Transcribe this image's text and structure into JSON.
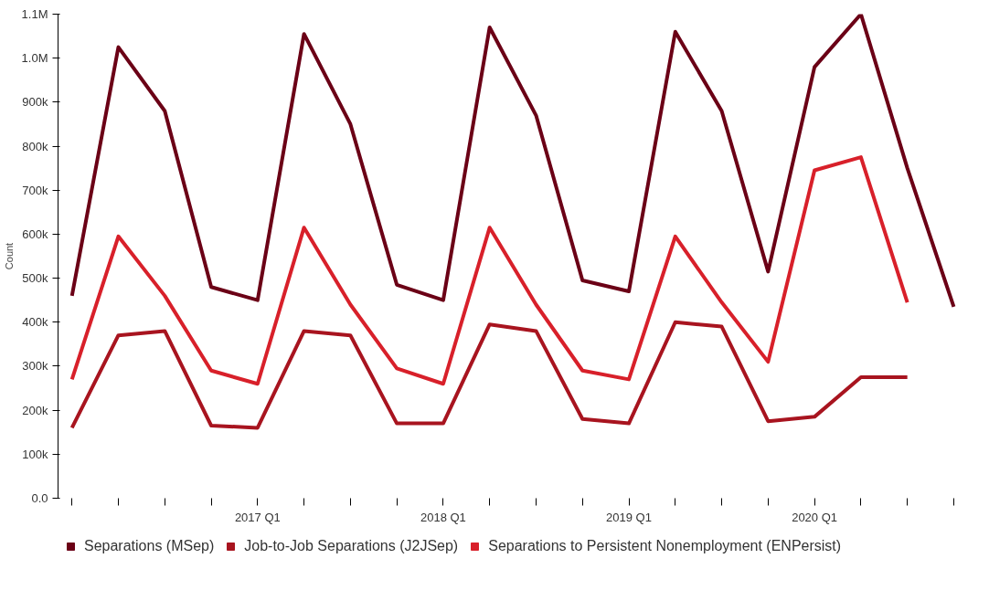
{
  "chart_data": {
    "type": "line",
    "ylabel": "Count",
    "categories": [
      null,
      null,
      null,
      null,
      "2017 Q1",
      null,
      null,
      null,
      "2018 Q1",
      null,
      null,
      null,
      "2019 Q1",
      null,
      null,
      null,
      "2020 Q1",
      null,
      null,
      null
    ],
    "series": [
      {
        "name": "Separations (MSep)",
        "color": "#6b0016",
        "values": [
          460000,
          1025000,
          880000,
          480000,
          450000,
          1055000,
          850000,
          485000,
          450000,
          1070000,
          870000,
          495000,
          470000,
          1060000,
          880000,
          515000,
          980000,
          1100000,
          750000,
          435000
        ]
      },
      {
        "name": "Job-to-Job Separations (J2JSep)",
        "color": "#a8141f",
        "values": [
          160000,
          370000,
          380000,
          165000,
          160000,
          380000,
          370000,
          170000,
          170000,
          395000,
          380000,
          180000,
          170000,
          400000,
          390000,
          175000,
          185000,
          275000,
          275000,
          null
        ]
      },
      {
        "name": "Separations to Persistent Nonemployment (ENPersist)",
        "color": "#d8202a",
        "values": [
          270000,
          595000,
          460000,
          290000,
          260000,
          615000,
          440000,
          295000,
          260000,
          615000,
          440000,
          290000,
          270000,
          595000,
          445000,
          310000,
          745000,
          775000,
          445000,
          null
        ]
      }
    ],
    "ylim": [
      0,
      1100000
    ],
    "yticks": [
      {
        "value": 0,
        "label": "0.0"
      },
      {
        "value": 100000,
        "label": "100k"
      },
      {
        "value": 200000,
        "label": "200k"
      },
      {
        "value": 300000,
        "label": "300k"
      },
      {
        "value": 400000,
        "label": "400k"
      },
      {
        "value": 500000,
        "label": "500k"
      },
      {
        "value": 600000,
        "label": "600k"
      },
      {
        "value": 700000,
        "label": "700k"
      },
      {
        "value": 800000,
        "label": "800k"
      },
      {
        "value": 900000,
        "label": "900k"
      },
      {
        "value": 1000000,
        "label": "1.0M"
      },
      {
        "value": 1100000,
        "label": "1.1M"
      }
    ],
    "grid": false,
    "legend": "bottom",
    "marker": "none",
    "line_style": "solid"
  }
}
